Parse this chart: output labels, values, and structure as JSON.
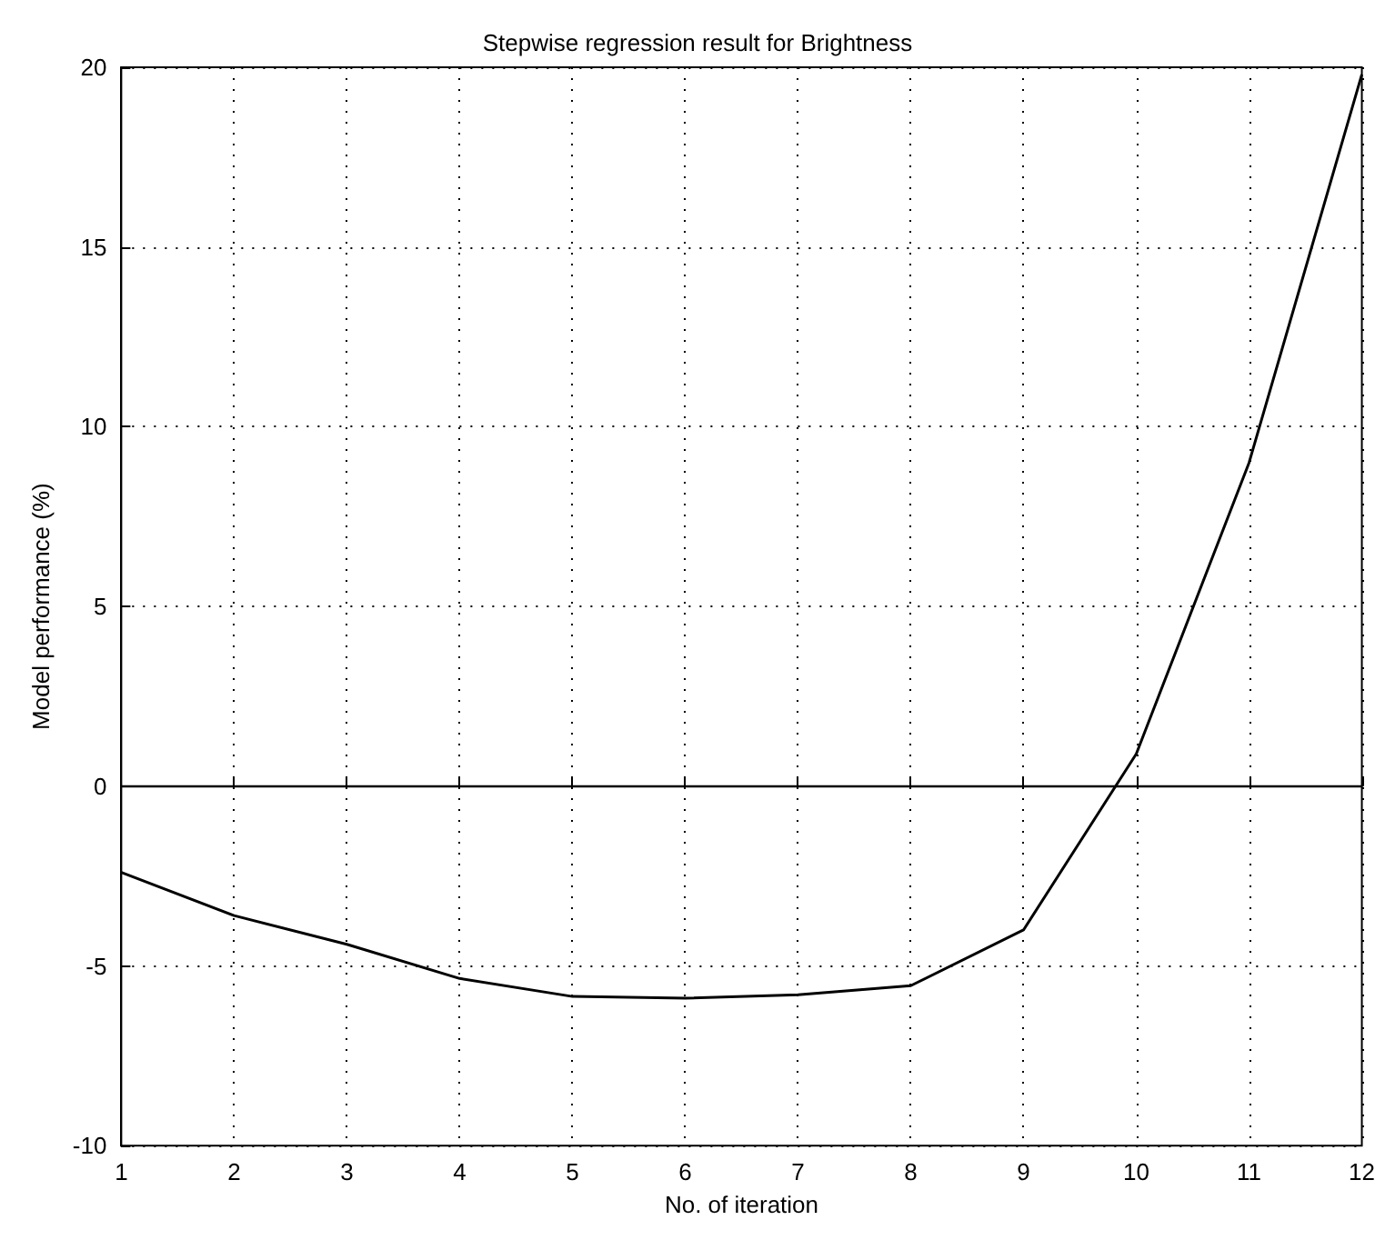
{
  "chart_data": {
    "type": "line",
    "title": "Stepwise regression result for Brightness",
    "xlabel": "No. of iteration",
    "ylabel": "Model performance (%)",
    "x": [
      1,
      2,
      3,
      4,
      5,
      6,
      7,
      8,
      9,
      10,
      11,
      12
    ],
    "series": [
      {
        "color": "#000000",
        "values": [
          -2.4,
          -3.6,
          -4.4,
          -5.35,
          -5.85,
          -5.9,
          -5.8,
          -5.55,
          -4.0,
          0.9,
          9.0,
          19.8
        ]
      }
    ],
    "xlim": [
      1,
      12
    ],
    "xticks": [
      1,
      2,
      3,
      4,
      5,
      6,
      7,
      8,
      9,
      10,
      11,
      12
    ],
    "ylim": [
      -10,
      20
    ],
    "yticks": [
      -10,
      -5,
      0,
      5,
      10,
      15,
      20
    ],
    "ref_lines": [
      {
        "axis": "y",
        "value": 0,
        "color": "#000000",
        "line_style": "solid"
      }
    ],
    "grid": true,
    "line_style": "solid",
    "marker": "none"
  }
}
